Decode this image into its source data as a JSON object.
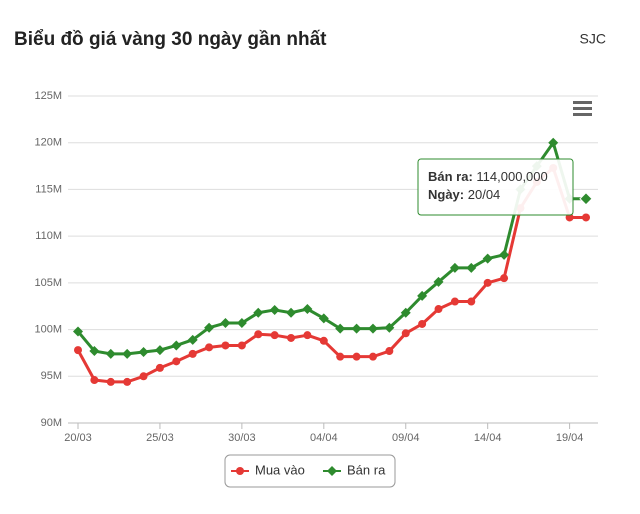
{
  "chart_data": {
    "type": "line",
    "title": "Biểu đồ giá vàng 30 ngày gần nhất",
    "source": "SJC",
    "categories": [
      "20/03",
      null,
      null,
      null,
      null,
      "25/03",
      null,
      null,
      null,
      null,
      "30/03",
      null,
      null,
      null,
      null,
      "04/04",
      null,
      null,
      null,
      null,
      "09/04",
      null,
      null,
      null,
      null,
      "14/04",
      null,
      null,
      null,
      null,
      "19/04",
      "20/04"
    ],
    "series": [
      {
        "name": "Mua vào",
        "color": "#e53935",
        "marker": "circle",
        "values": [
          97800000,
          94600000,
          94400000,
          94400000,
          95000000,
          95900000,
          96600000,
          97400000,
          98100000,
          98300000,
          98300000,
          99500000,
          99400000,
          99100000,
          99400000,
          98800000,
          97100000,
          97100000,
          97100000,
          97700000,
          99600000,
          100600000,
          102200000,
          103000000,
          103000000,
          105000000,
          105500000,
          113000000,
          115800000,
          117300000,
          112000000,
          112000000
        ]
      },
      {
        "name": "Bán ra",
        "color": "#2e8b2e",
        "marker": "diamond",
        "values": [
          99800000,
          97700000,
          97400000,
          97400000,
          97600000,
          97800000,
          98300000,
          98900000,
          100200000,
          100700000,
          100700000,
          101800000,
          102100000,
          101800000,
          102200000,
          101200000,
          100100000,
          100100000,
          100100000,
          100200000,
          101800000,
          103600000,
          105100000,
          106600000,
          106600000,
          107600000,
          108000000,
          115000000,
          117500000,
          120000000,
          114000000,
          114000000
        ]
      }
    ],
    "ylim": [
      90000000,
      125000000
    ],
    "yticks": [
      {
        "value": 90000000,
        "label": "90M"
      },
      {
        "value": 95000000,
        "label": "95M"
      },
      {
        "value": 100000000,
        "label": "100M"
      },
      {
        "value": 105000000,
        "label": "105M"
      },
      {
        "value": 110000000,
        "label": "110M"
      },
      {
        "value": 115000000,
        "label": "115M"
      },
      {
        "value": 120000000,
        "label": "120M"
      },
      {
        "value": 125000000,
        "label": "125M"
      }
    ],
    "grid": true,
    "legend": "bottom",
    "tooltip": {
      "series": 1,
      "index": 31,
      "value_label": "114,000,000",
      "date_label": "Ngày"
    }
  }
}
